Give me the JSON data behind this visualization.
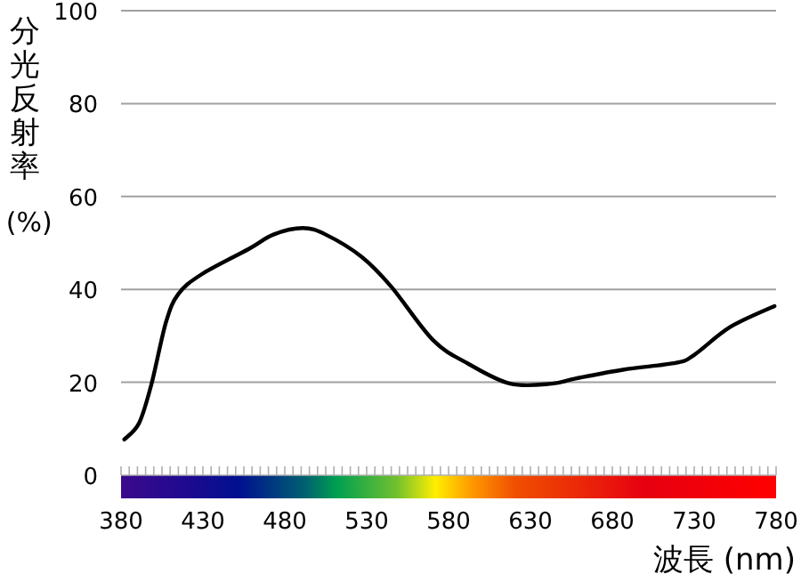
{
  "chart_data": {
    "type": "line",
    "xlabel": "波長 (nm)",
    "ylabel": "分光反射率 (%)",
    "xlim": [
      380,
      780
    ],
    "xticks": [
      380,
      430,
      480,
      530,
      580,
      630,
      680,
      730,
      780
    ],
    "ylim": [
      0,
      100
    ],
    "yticks": [
      0,
      20,
      40,
      60,
      80,
      100
    ],
    "grid": "y",
    "marker": "none",
    "line_style": "solid",
    "series": [
      {
        "color": "#000000",
        "x": [
          382,
          391,
          398.5,
          407.5,
          415,
          429,
          458,
          473,
          491,
          505,
          527,
          545,
          570.5,
          592,
          617.7,
          643,
          657.5,
          686.5,
          719,
          730,
          752,
          779
        ],
        "values": [
          7.7,
          11.2,
          19.5,
          33,
          39,
          43.2,
          48.7,
          51.8,
          53.2,
          51.8,
          47,
          40.6,
          29.1,
          24,
          19.7,
          19.7,
          20.8,
          22.7,
          24.2,
          25.9,
          31.9,
          36.4
        ]
      }
    ]
  }
}
